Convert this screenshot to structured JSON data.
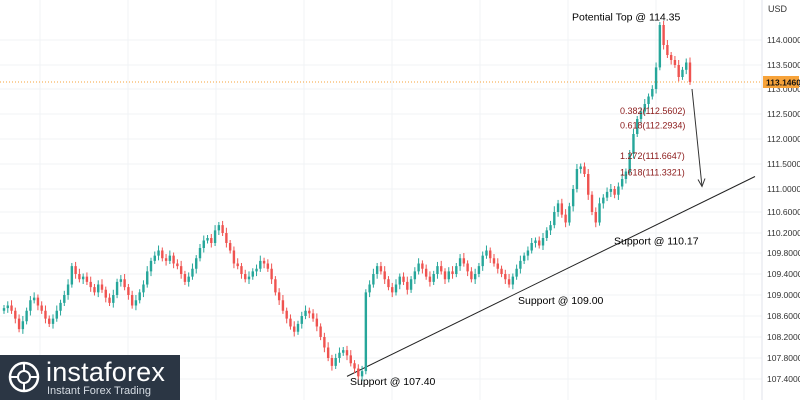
{
  "chart_data": {
    "type": "candlestick",
    "currency_label": "USD",
    "y_axis": {
      "range": [
        107.3,
        114.6
      ],
      "ticks": [
        "114.0000",
        "113.5000",
        "113.0000",
        "112.5000",
        "112.0000",
        "111.5000",
        "111.0000",
        "110.6000",
        "110.2000",
        "109.8000",
        "109.4000",
        "109.0000",
        "108.6000",
        "108.2000",
        "107.8000",
        "107.4000"
      ],
      "tick_values": [
        114.0,
        113.5,
        113.0,
        112.5,
        112.0,
        111.5,
        111.0,
        110.6,
        110.2,
        109.8,
        109.4,
        109.0,
        108.6,
        108.2,
        107.8,
        107.4
      ]
    },
    "current_price": {
      "label": "113.1460",
      "value": 113.146
    },
    "grid": true,
    "colors": {
      "up": "#26a69a",
      "down": "#ef5350",
      "annotation": "#8b1a1a",
      "badge": "#f7a33a",
      "line": "#222222"
    },
    "annotations": [
      {
        "text": "Potential Top @ 114.35",
        "price": 114.35,
        "color": "#000000"
      },
      {
        "text": "Support @ 110.17",
        "price": 110.17,
        "color": "#000000"
      },
      {
        "text": "Support @ 109.00",
        "price": 109.0,
        "color": "#000000"
      },
      {
        "text": "Support @ 107.40",
        "price": 107.4,
        "color": "#000000"
      },
      {
        "text": "0.382(112.5602)",
        "price": 112.5602,
        "color": "#8b1a1a"
      },
      {
        "text": "0.618(112.2934)",
        "price": 112.2934,
        "color": "#8b1a1a"
      },
      {
        "text": "1.272(111.6647)",
        "price": 111.6647,
        "color": "#8b1a1a"
      },
      {
        "text": "1.618(111.3321)",
        "price": 111.3321,
        "color": "#8b1a1a"
      }
    ],
    "trendline": {
      "from": 107.45,
      "to": 111.25
    },
    "arrow": {
      "from": 113.0,
      "to": 111.05
    },
    "series": [
      {
        "c": 108.75
      },
      {
        "c": 108.8
      },
      {
        "c": 108.7
      },
      {
        "c": 108.55
      },
      {
        "c": 108.35
      },
      {
        "c": 108.5
      },
      {
        "c": 108.7
      },
      {
        "c": 108.9
      },
      {
        "c": 108.95
      },
      {
        "c": 108.8
      },
      {
        "c": 108.7
      },
      {
        "c": 108.55
      },
      {
        "c": 108.45
      },
      {
        "c": 108.55
      },
      {
        "c": 108.7
      },
      {
        "c": 108.85
      },
      {
        "c": 109.0
      },
      {
        "c": 109.2
      },
      {
        "c": 109.55
      },
      {
        "c": 109.4
      },
      {
        "c": 109.3
      },
      {
        "c": 109.35
      },
      {
        "c": 109.25
      },
      {
        "c": 109.15
      },
      {
        "c": 109.05
      },
      {
        "c": 109.2
      },
      {
        "c": 109.1
      },
      {
        "c": 108.95
      },
      {
        "c": 108.85
      },
      {
        "c": 109.0
      },
      {
        "c": 109.25
      },
      {
        "c": 109.3
      },
      {
        "c": 109.15
      },
      {
        "c": 109.0
      },
      {
        "c": 108.8
      },
      {
        "c": 108.9
      },
      {
        "c": 109.05
      },
      {
        "c": 109.2
      },
      {
        "c": 109.45
      },
      {
        "c": 109.65
      },
      {
        "c": 109.75
      },
      {
        "c": 109.85
      },
      {
        "c": 109.7
      },
      {
        "c": 109.65
      },
      {
        "c": 109.75
      },
      {
        "c": 109.6
      },
      {
        "c": 109.55
      },
      {
        "c": 109.4
      },
      {
        "c": 109.25
      },
      {
        "c": 109.35
      },
      {
        "c": 109.5
      },
      {
        "c": 109.7
      },
      {
        "c": 109.9
      },
      {
        "c": 110.05
      },
      {
        "c": 110.1
      },
      {
        "c": 110.0
      },
      {
        "c": 110.25
      },
      {
        "c": 110.35
      },
      {
        "c": 110.2
      },
      {
        "c": 110.0
      },
      {
        "c": 109.85
      },
      {
        "c": 109.6
      },
      {
        "c": 109.55
      },
      {
        "c": 109.4
      },
      {
        "c": 109.3
      },
      {
        "c": 109.35
      },
      {
        "c": 109.45
      },
      {
        "c": 109.5
      },
      {
        "c": 109.65
      },
      {
        "c": 109.6
      },
      {
        "c": 109.5
      },
      {
        "c": 109.3
      },
      {
        "c": 109.05
      },
      {
        "c": 108.9
      },
      {
        "c": 108.7
      },
      {
        "c": 108.55
      },
      {
        "c": 108.4
      },
      {
        "c": 108.3
      },
      {
        "c": 108.45
      },
      {
        "c": 108.6
      },
      {
        "c": 108.7
      },
      {
        "c": 108.65
      },
      {
        "c": 108.55
      },
      {
        "c": 108.4
      },
      {
        "c": 108.2
      },
      {
        "c": 108.0
      },
      {
        "c": 107.8
      },
      {
        "c": 107.65
      },
      {
        "c": 107.8
      },
      {
        "c": 107.9
      },
      {
        "c": 107.95
      },
      {
        "c": 107.85
      },
      {
        "c": 107.7
      },
      {
        "c": 107.6
      },
      {
        "c": 107.45
      },
      {
        "c": 107.55
      },
      {
        "c": 109.05
      },
      {
        "c": 109.2
      },
      {
        "c": 109.4
      },
      {
        "c": 109.55
      },
      {
        "c": 109.45
      },
      {
        "c": 109.3
      },
      {
        "c": 109.15
      },
      {
        "c": 109.05
      },
      {
        "c": 109.2
      },
      {
        "c": 109.35
      },
      {
        "c": 109.25
      },
      {
        "c": 109.1
      },
      {
        "c": 109.3
      },
      {
        "c": 109.45
      },
      {
        "c": 109.6
      },
      {
        "c": 109.5
      },
      {
        "c": 109.35
      },
      {
        "c": 109.25
      },
      {
        "c": 109.4
      },
      {
        "c": 109.55
      },
      {
        "c": 109.45
      },
      {
        "c": 109.3
      },
      {
        "c": 109.45
      },
      {
        "c": 109.4
      },
      {
        "c": 109.55
      },
      {
        "c": 109.7
      },
      {
        "c": 109.6
      },
      {
        "c": 109.45
      },
      {
        "c": 109.3
      },
      {
        "c": 109.4
      },
      {
        "c": 109.55
      },
      {
        "c": 109.75
      },
      {
        "c": 109.85
      },
      {
        "c": 109.7
      },
      {
        "c": 109.6
      },
      {
        "c": 109.5
      },
      {
        "c": 109.4
      },
      {
        "c": 109.3
      },
      {
        "c": 109.2
      },
      {
        "c": 109.35
      },
      {
        "c": 109.5
      },
      {
        "c": 109.65
      },
      {
        "c": 109.75
      },
      {
        "c": 109.85
      },
      {
        "c": 110.0
      },
      {
        "c": 110.05
      },
      {
        "c": 109.95
      },
      {
        "c": 110.1
      },
      {
        "c": 110.25
      },
      {
        "c": 110.35
      },
      {
        "c": 110.6
      },
      {
        "c": 110.75
      },
      {
        "c": 110.55
      },
      {
        "c": 110.4
      },
      {
        "c": 110.7
      },
      {
        "c": 111.0
      },
      {
        "c": 111.4
      },
      {
        "c": 111.45
      },
      {
        "c": 111.3
      },
      {
        "c": 110.9
      },
      {
        "c": 110.6
      },
      {
        "c": 110.4
      },
      {
        "c": 110.75
      },
      {
        "c": 110.85
      },
      {
        "c": 110.95
      },
      {
        "c": 111.0
      },
      {
        "c": 110.9
      },
      {
        "c": 111.05
      },
      {
        "c": 111.2
      },
      {
        "c": 111.35
      },
      {
        "c": 111.7
      },
      {
        "c": 112.1
      },
      {
        "c": 112.4
      },
      {
        "c": 112.55
      },
      {
        "c": 112.7
      },
      {
        "c": 112.85
      },
      {
        "c": 113.0
      },
      {
        "c": 113.45
      },
      {
        "c": 114.3
      },
      {
        "c": 113.9
      },
      {
        "c": 113.7
      },
      {
        "c": 113.6
      },
      {
        "c": 113.5
      },
      {
        "c": 113.25
      },
      {
        "c": 113.4
      },
      {
        "c": 113.55
      },
      {
        "c": 113.146
      }
    ]
  },
  "watermark": {
    "brand": "instaforex",
    "tagline": "Instant Forex Trading"
  }
}
